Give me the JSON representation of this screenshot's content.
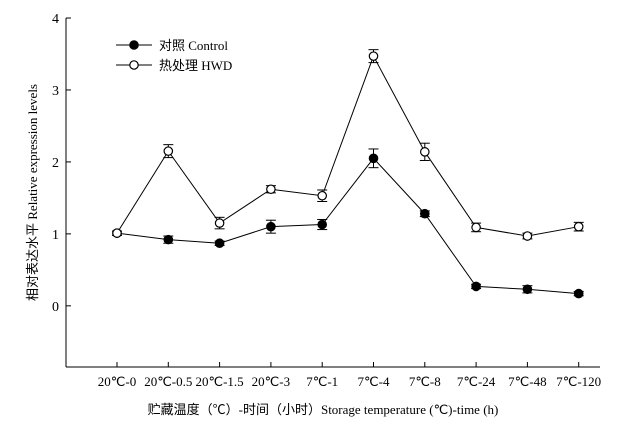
{
  "chart_data": {
    "type": "line",
    "xlabel": "贮藏温度（℃）-时间（小时）Storage temperature (℃)-time (h)",
    "ylabel": "相对表达水平 Relative expression levels",
    "categories": [
      "20℃-0",
      "20℃-0.5",
      "20℃-1.5",
      "20℃-3",
      "7℃-1",
      "7℃-4",
      "7℃-8",
      "7℃-24",
      "7℃-48",
      "7℃-120"
    ],
    "ylim": [
      -0.85,
      4
    ],
    "yticks": [
      0,
      1,
      2,
      3,
      4
    ],
    "grid": false,
    "legend_position": "top-left",
    "series": [
      {
        "name": "对照 Control",
        "marker": "filled-circle",
        "color": "#000000",
        "values": [
          1.01,
          0.92,
          0.87,
          1.1,
          1.13,
          2.05,
          1.28,
          0.27,
          0.23,
          0.17
        ],
        "errors": [
          0.03,
          0.05,
          0.03,
          0.09,
          0.07,
          0.13,
          0.04,
          0.03,
          0.05,
          0.03
        ]
      },
      {
        "name": "热处理 HWD",
        "marker": "open-circle",
        "color": "#000000",
        "values": [
          1.01,
          2.15,
          1.15,
          1.62,
          1.53,
          3.47,
          2.14,
          1.09,
          0.97,
          1.1
        ],
        "errors": [
          0.03,
          0.09,
          0.08,
          0.05,
          0.08,
          0.09,
          0.12,
          0.06,
          0.04,
          0.06
        ]
      }
    ]
  }
}
